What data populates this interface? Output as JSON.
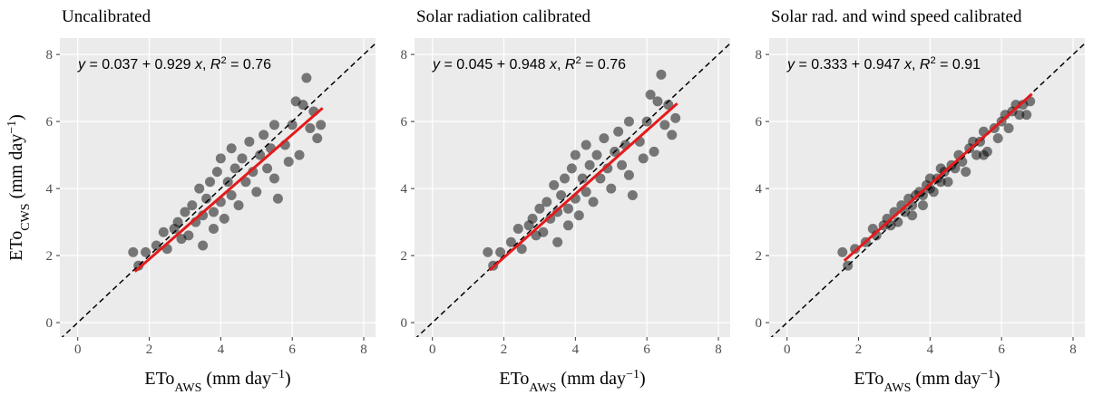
{
  "chart_data": [
    {
      "type": "scatter",
      "title": "Uncalibrated",
      "color": "#000000",
      "fit_color": "#e41a1c",
      "annotation": [
        {
          "text": "y",
          "style": "italic"
        },
        {
          "text": " = 0.037 + 0.929 "
        },
        {
          "text": "x",
          "style": "italic"
        },
        {
          "text": ", "
        },
        {
          "text": "R",
          "style": "italic"
        },
        {
          "text": "2",
          "style": "sup"
        },
        {
          "text": " = 0.76"
        }
      ],
      "fit": {
        "intercept": 0.037,
        "slope": 0.929,
        "x": [
          1.6,
          6.85
        ]
      },
      "xlabel": [
        {
          "text": "ETo"
        },
        {
          "text": "AWS",
          "style": "sub"
        },
        {
          "text": " (mm day"
        },
        {
          "text": "−1",
          "style": "sup"
        },
        {
          "text": ")"
        }
      ],
      "ylabel": [
        {
          "text": "ETo"
        },
        {
          "text": "CWS",
          "style": "sub"
        },
        {
          "text": " (mm day"
        },
        {
          "text": "−1",
          "style": "sup"
        },
        {
          "text": ")"
        }
      ],
      "xlim": [
        -0.5,
        8.33
      ],
      "ylim": [
        -0.43,
        8.49
      ],
      "xticks": [
        0,
        2,
        4,
        6,
        8
      ],
      "yticks": [
        0,
        2,
        4,
        6,
        8
      ],
      "grid": true,
      "x": [
        1.55,
        1.7,
        1.9,
        2.2,
        2.4,
        2.5,
        2.7,
        2.8,
        2.9,
        3.0,
        3.1,
        3.2,
        3.3,
        3.4,
        3.5,
        3.5,
        3.6,
        3.7,
        3.8,
        3.8,
        3.9,
        4.0,
        4.0,
        4.1,
        4.2,
        4.3,
        4.3,
        4.4,
        4.5,
        4.6,
        4.7,
        4.8,
        4.9,
        5.0,
        5.1,
        5.2,
        5.3,
        5.4,
        5.5,
        5.5,
        5.6,
        5.8,
        5.9,
        6.0,
        6.1,
        6.2,
        6.3,
        6.4,
        6.5,
        6.6,
        6.8,
        6.7
      ],
      "y": [
        2.1,
        1.7,
        2.1,
        2.3,
        2.7,
        2.2,
        2.8,
        3.0,
        2.5,
        3.3,
        2.6,
        3.5,
        3.0,
        4.0,
        3.2,
        2.3,
        3.7,
        4.2,
        3.3,
        2.8,
        4.5,
        3.6,
        4.9,
        3.1,
        4.2,
        3.8,
        5.2,
        4.6,
        3.5,
        4.9,
        4.2,
        5.4,
        4.5,
        3.9,
        5.0,
        5.6,
        4.6,
        5.2,
        4.3,
        5.9,
        3.7,
        5.3,
        4.8,
        5.9,
        6.6,
        5.0,
        6.5,
        7.3,
        5.8,
        6.3,
        5.9,
        5.5
      ]
    },
    {
      "type": "scatter",
      "title": "Solar radiation calibrated",
      "color": "#000000",
      "fit_color": "#e41a1c",
      "annotation": [
        {
          "text": "y",
          "style": "italic"
        },
        {
          "text": " = 0.045 + 0.948 "
        },
        {
          "text": "x",
          "style": "italic"
        },
        {
          "text": ", "
        },
        {
          "text": "R",
          "style": "italic"
        },
        {
          "text": "2",
          "style": "sup"
        },
        {
          "text": " = 0.76"
        }
      ],
      "fit": {
        "intercept": 0.045,
        "slope": 0.948,
        "x": [
          1.6,
          6.85
        ]
      },
      "xlabel": [
        {
          "text": "ETo"
        },
        {
          "text": "AWS",
          "style": "sub"
        },
        {
          "text": " (mm day"
        },
        {
          "text": "−1",
          "style": "sup"
        },
        {
          "text": ")"
        }
      ],
      "xlim": [
        -0.5,
        8.33
      ],
      "ylim": [
        -0.43,
        8.49
      ],
      "xticks": [
        0,
        2,
        4,
        6,
        8
      ],
      "yticks": [
        0,
        2,
        4,
        6,
        8
      ],
      "grid": true,
      "x": [
        1.55,
        1.7,
        1.9,
        2.2,
        2.4,
        2.5,
        2.7,
        2.8,
        2.9,
        3.0,
        3.1,
        3.2,
        3.3,
        3.4,
        3.5,
        3.5,
        3.6,
        3.7,
        3.8,
        3.8,
        3.9,
        4.0,
        4.0,
        4.1,
        4.2,
        4.3,
        4.3,
        4.4,
        4.5,
        4.6,
        4.7,
        4.8,
        4.9,
        5.0,
        5.1,
        5.2,
        5.3,
        5.4,
        5.5,
        5.5,
        5.6,
        5.8,
        5.9,
        6.0,
        6.1,
        6.2,
        6.3,
        6.4,
        6.5,
        6.6,
        6.8,
        6.7
      ],
      "y": [
        2.1,
        1.7,
        2.1,
        2.4,
        2.8,
        2.2,
        2.9,
        3.1,
        2.6,
        3.4,
        2.7,
        3.6,
        3.1,
        4.1,
        3.3,
        2.4,
        3.8,
        4.3,
        3.4,
        2.9,
        4.6,
        3.7,
        5.0,
        3.2,
        4.3,
        3.9,
        5.3,
        4.7,
        3.6,
        5.0,
        4.3,
        5.5,
        4.6,
        4.0,
        5.1,
        5.7,
        4.7,
        5.3,
        4.4,
        6.0,
        3.8,
        5.4,
        4.9,
        6.0,
        6.8,
        5.1,
        6.6,
        7.4,
        5.9,
        6.5,
        6.1,
        5.6
      ]
    },
    {
      "type": "scatter",
      "title": "Solar rad. and wind speed calibrated",
      "color": "#000000",
      "fit_color": "#e41a1c",
      "annotation": [
        {
          "text": "y",
          "style": "italic"
        },
        {
          "text": " = 0.333 + 0.947 "
        },
        {
          "text": "x",
          "style": "italic"
        },
        {
          "text": ", "
        },
        {
          "text": "R",
          "style": "italic"
        },
        {
          "text": "2",
          "style": "sup"
        },
        {
          "text": " = 0.91"
        }
      ],
      "fit": {
        "intercept": 0.333,
        "slope": 0.947,
        "x": [
          1.6,
          6.85
        ]
      },
      "xlabel": [
        {
          "text": "ETo"
        },
        {
          "text": "AWS",
          "style": "sub"
        },
        {
          "text": " (mm day"
        },
        {
          "text": "−1",
          "style": "sup"
        },
        {
          "text": ")"
        }
      ],
      "xlim": [
        -0.5,
        8.33
      ],
      "ylim": [
        -0.43,
        8.49
      ],
      "xticks": [
        0,
        2,
        4,
        6,
        8
      ],
      "yticks": [
        0,
        2,
        4,
        6,
        8
      ],
      "grid": true,
      "x": [
        1.55,
        1.7,
        1.9,
        2.2,
        2.4,
        2.5,
        2.7,
        2.8,
        2.9,
        3.0,
        3.1,
        3.2,
        3.3,
        3.4,
        3.5,
        3.5,
        3.6,
        3.7,
        3.8,
        3.8,
        3.9,
        4.0,
        4.0,
        4.1,
        4.2,
        4.3,
        4.3,
        4.4,
        4.5,
        4.6,
        4.7,
        4.8,
        4.9,
        5.0,
        5.1,
        5.2,
        5.3,
        5.4,
        5.5,
        5.5,
        5.6,
        5.8,
        5.9,
        6.0,
        6.1,
        6.2,
        6.3,
        6.4,
        6.5,
        6.6,
        6.8,
        6.7
      ],
      "y": [
        2.1,
        1.7,
        2.2,
        2.4,
        2.8,
        2.6,
        2.9,
        3.1,
        2.9,
        3.3,
        3.0,
        3.5,
        3.3,
        3.7,
        3.5,
        3.2,
        3.8,
        3.9,
        3.8,
        3.5,
        4.1,
        4.0,
        4.3,
        3.9,
        4.3,
        4.2,
        4.6,
        4.5,
        4.2,
        4.7,
        4.6,
        5.0,
        4.8,
        4.5,
        5.2,
        5.4,
        5.0,
        5.4,
        5.0,
        5.7,
        5.1,
        5.8,
        5.5,
        6.0,
        6.2,
        5.8,
        6.3,
        6.5,
        6.2,
        6.5,
        6.6,
        6.2
      ]
    }
  ]
}
